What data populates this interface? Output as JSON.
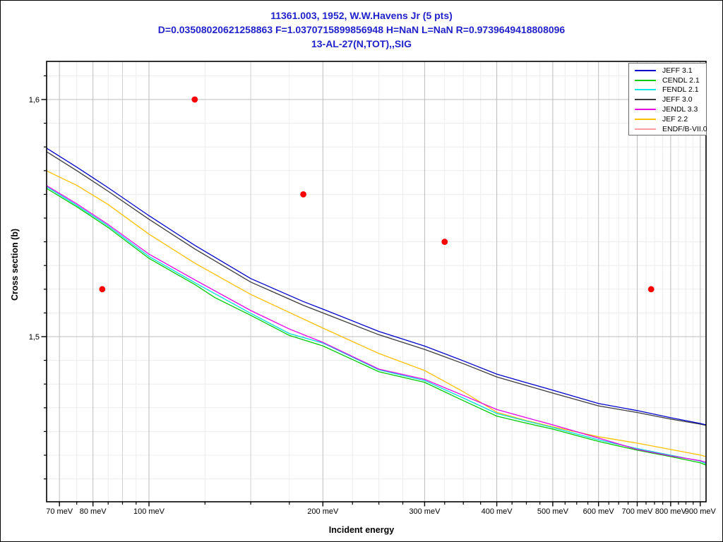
{
  "titles": {
    "line1": "11361.003, 1952, W.W.Havens Jr (5 pts)",
    "line2": "D=0.03508020621258863 F=1.0370715899856948 H=NaN L=NaN R=0.9739649418808096",
    "line3": "13-AL-27(N,TOT),,SIG"
  },
  "colors": {
    "title_text": "#2222cc",
    "experimental_points": "#ff0000",
    "grid_major": "#bcbcbc",
    "grid_semi": "#d2d2d2",
    "grid_minor": "#ececec",
    "frame": "#000000"
  },
  "legend": {
    "items": [
      {
        "label": "JEFF 3.1",
        "color": "#0000cc"
      },
      {
        "label": "CENDL 2.1",
        "color": "#00cc00"
      },
      {
        "label": "FENDL 2.1",
        "color": "#00e6e6"
      },
      {
        "label": "JEFF 3.0",
        "color": "#3c3c3c"
      },
      {
        "label": "JENDL 3.3",
        "color": "#e600e6"
      },
      {
        "label": "JEF 2.2",
        "color": "#ffc000"
      },
      {
        "label": "ENDF/B-VII.0",
        "color": "#ff9f9f"
      }
    ]
  },
  "axes": {
    "x": {
      "title": "Incident energy",
      "scale": "log",
      "unit": "meV",
      "min_meV": 66.5,
      "max_meV": 921,
      "major_ticks": [
        {
          "value": 70,
          "label": "70 meV"
        },
        {
          "value": 80,
          "label": "80 meV"
        },
        {
          "value": 100,
          "label": "100 meV"
        },
        {
          "value": 200,
          "label": "200 meV"
        },
        {
          "value": 300,
          "label": "300 meV"
        },
        {
          "value": 400,
          "label": "400 meV"
        },
        {
          "value": 500,
          "label": "500 meV"
        },
        {
          "value": 600,
          "label": "600 meV"
        },
        {
          "value": 700,
          "label": "700 meV"
        },
        {
          "value": 800,
          "label": "800 meV"
        },
        {
          "value": 900,
          "label": "900 meV"
        }
      ],
      "minor_ticks": [
        75,
        85,
        90,
        95,
        125,
        150,
        175,
        225,
        250,
        275,
        325,
        350,
        375,
        425,
        450,
        475,
        525,
        550,
        575,
        625,
        650,
        675,
        725,
        750,
        775,
        825,
        850,
        875
      ],
      "semi_grid": [
        90,
        150
      ]
    },
    "y": {
      "title": "Cross section (b)",
      "scale": "linear",
      "min": 1.4304,
      "max": 1.6161,
      "major_ticks": [
        {
          "value": 1.6,
          "label": "1,6"
        },
        {
          "value": 1.5,
          "label": "1,5"
        }
      ],
      "minor_tick_step": 0.01,
      "minor_tick_range": [
        1.44,
        1.61
      ]
    }
  },
  "chart_data": {
    "type": "line",
    "title": "13-AL-27(N,TOT),,SIG",
    "xlabel": "Incident energy",
    "ylabel": "Cross section (b)",
    "x_scale": "log",
    "x_range_meV": [
      66.5,
      921
    ],
    "y_range": [
      1.4304,
      1.6161
    ],
    "grid": true,
    "legend_position": "top-right",
    "series": [
      {
        "name": "ENDF/B-VII.0",
        "color": "#ff9f9f",
        "points": [
          [
            66.5,
            1.5632
          ],
          [
            75,
            1.5554
          ],
          [
            85,
            1.5467
          ],
          [
            100,
            1.5338
          ],
          [
            120,
            1.5228
          ],
          [
            150,
            1.5098
          ],
          [
            175,
            1.5013
          ],
          [
            200,
            1.4973
          ],
          [
            250,
            1.486
          ],
          [
            300,
            1.4815
          ],
          [
            350,
            1.4741
          ],
          [
            400,
            1.4676
          ],
          [
            450,
            1.4644
          ],
          [
            500,
            1.4617
          ],
          [
            600,
            1.4565
          ],
          [
            700,
            1.4528
          ],
          [
            800,
            1.45
          ],
          [
            900,
            1.4475
          ],
          [
            921,
            1.4464
          ]
        ]
      },
      {
        "name": "JEF 2.2",
        "color": "#ffc000",
        "points": [
          [
            66.5,
            1.5699
          ],
          [
            75,
            1.5638
          ],
          [
            85,
            1.5557
          ],
          [
            100,
            1.5432
          ],
          [
            120,
            1.531
          ],
          [
            150,
            1.5178
          ],
          [
            200,
            1.5036
          ],
          [
            250,
            1.4929
          ],
          [
            300,
            1.4857
          ],
          [
            350,
            1.4768
          ],
          [
            400,
            1.4681
          ],
          [
            450,
            1.4646
          ],
          [
            500,
            1.462
          ],
          [
            600,
            1.4578
          ],
          [
            700,
            1.4551
          ],
          [
            800,
            1.4524
          ],
          [
            900,
            1.4501
          ],
          [
            921,
            1.4494
          ]
        ]
      },
      {
        "name": "CENDL 2.1",
        "color": "#00cc00",
        "points": [
          [
            66.5,
            1.5625
          ],
          [
            75,
            1.5548
          ],
          [
            85,
            1.546
          ],
          [
            100,
            1.533
          ],
          [
            120,
            1.522
          ],
          [
            130,
            1.5165
          ],
          [
            150,
            1.509
          ],
          [
            175,
            1.5005
          ],
          [
            200,
            1.4961
          ],
          [
            250,
            1.4852
          ],
          [
            300,
            1.4807
          ],
          [
            350,
            1.473
          ],
          [
            400,
            1.4665
          ],
          [
            450,
            1.4635
          ],
          [
            500,
            1.461
          ],
          [
            600,
            1.4558
          ],
          [
            700,
            1.4521
          ],
          [
            800,
            1.4494
          ],
          [
            900,
            1.4468
          ],
          [
            921,
            1.4458
          ]
        ]
      },
      {
        "name": "FENDL 2.1",
        "color": "#00e6e6",
        "points": [
          [
            66.5,
            1.5632
          ],
          [
            75,
            1.5554
          ],
          [
            85,
            1.5467
          ],
          [
            100,
            1.5338
          ],
          [
            120,
            1.5228
          ],
          [
            150,
            1.5098
          ],
          [
            175,
            1.5013
          ],
          [
            200,
            1.4973
          ],
          [
            250,
            1.486
          ],
          [
            300,
            1.4815
          ],
          [
            350,
            1.4741
          ],
          [
            400,
            1.4676
          ],
          [
            450,
            1.4644
          ],
          [
            500,
            1.4617
          ],
          [
            600,
            1.4565
          ],
          [
            700,
            1.4528
          ],
          [
            800,
            1.45
          ],
          [
            900,
            1.4475
          ],
          [
            921,
            1.4464
          ]
        ]
      },
      {
        "name": "JENDL 3.3",
        "color": "#e600e6",
        "points": [
          [
            66.5,
            1.5637
          ],
          [
            75,
            1.556
          ],
          [
            85,
            1.5473
          ],
          [
            100,
            1.5348
          ],
          [
            120,
            1.524
          ],
          [
            150,
            1.511
          ],
          [
            175,
            1.5032
          ],
          [
            200,
            1.4976
          ],
          [
            250,
            1.4863
          ],
          [
            300,
            1.482
          ],
          [
            350,
            1.4752
          ],
          [
            400,
            1.4693
          ],
          [
            450,
            1.4658
          ],
          [
            500,
            1.4628
          ],
          [
            600,
            1.4572
          ],
          [
            700,
            1.4524
          ],
          [
            800,
            1.4497
          ],
          [
            900,
            1.4477
          ],
          [
            921,
            1.447
          ]
        ]
      },
      {
        "name": "JEFF 3.0",
        "color": "#3c3c3c",
        "points": [
          [
            66.5,
            1.578
          ],
          [
            75,
            1.57
          ],
          [
            85,
            1.5613
          ],
          [
            100,
            1.5495
          ],
          [
            120,
            1.537
          ],
          [
            150,
            1.523
          ],
          [
            185,
            1.5132
          ],
          [
            200,
            1.51
          ],
          [
            250,
            1.5008
          ],
          [
            300,
            1.4946
          ],
          [
            350,
            1.4886
          ],
          [
            400,
            1.483
          ],
          [
            450,
            1.4794
          ],
          [
            500,
            1.4762
          ],
          [
            600,
            1.4708
          ],
          [
            700,
            1.468
          ],
          [
            800,
            1.4652
          ],
          [
            900,
            1.4631
          ],
          [
            921,
            1.4626
          ]
        ]
      },
      {
        "name": "JEFF 3.1",
        "color": "#0000cc",
        "points": [
          [
            66.5,
            1.5795
          ],
          [
            75,
            1.5715
          ],
          [
            85,
            1.5628
          ],
          [
            100,
            1.551
          ],
          [
            120,
            1.5385
          ],
          [
            150,
            1.5245
          ],
          [
            185,
            1.5148
          ],
          [
            200,
            1.5116
          ],
          [
            250,
            1.5022
          ],
          [
            300,
            1.496
          ],
          [
            350,
            1.4898
          ],
          [
            400,
            1.4842
          ],
          [
            450,
            1.4806
          ],
          [
            500,
            1.4774
          ],
          [
            600,
            1.4718
          ],
          [
            700,
            1.4688
          ],
          [
            800,
            1.4658
          ],
          [
            900,
            1.4634
          ],
          [
            921,
            1.4628
          ]
        ]
      }
    ],
    "experimental_points": {
      "name": "11361.003, 1952, W.W.Havens Jr (5 pts)",
      "color": "#ff0000",
      "marker": "circle",
      "points": [
        [
          83,
          1.52
        ],
        [
          120,
          1.6
        ],
        [
          185,
          1.56
        ],
        [
          325,
          1.54
        ],
        [
          740,
          1.52
        ]
      ]
    }
  }
}
